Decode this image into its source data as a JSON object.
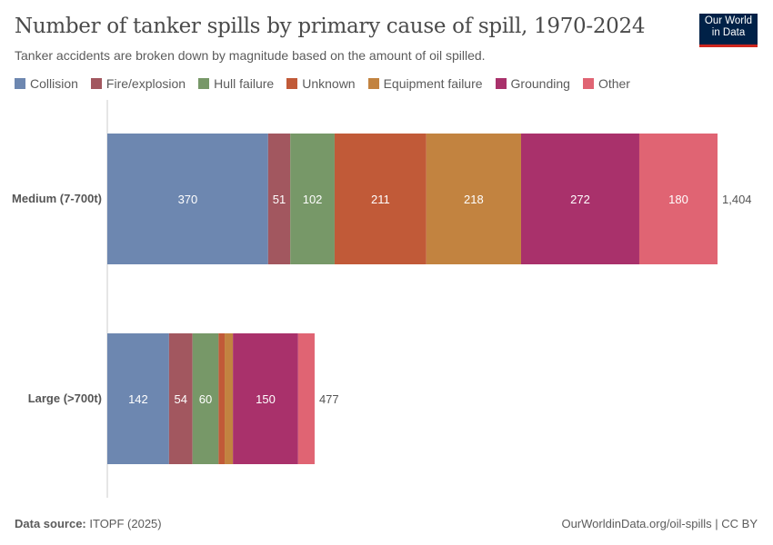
{
  "header": {
    "title": "Number of tanker spills by primary cause of spill, 1970-2024",
    "subtitle": "Tanker accidents are broken down by magnitude based on the amount of oil spilled.",
    "logo": "Our World in Data"
  },
  "footer": {
    "source_label": "Data source:",
    "source": "ITOPF (2025)",
    "url": "OurWorldinData.org/oil-spills | CC BY"
  },
  "chart_data": {
    "type": "bar",
    "orientation": "horizontal",
    "stacked": true,
    "title": "Number of tanker spills by primary cause of spill, 1970-2024",
    "categories": [
      "Medium (7-700t)",
      "Large (>700t)"
    ],
    "totals": [
      "1,404",
      "477"
    ],
    "legend_position": "top",
    "series": [
      {
        "name": "Collision",
        "color": "#6d87b0",
        "values": [
          370,
          142
        ]
      },
      {
        "name": "Fire/explosion",
        "color": "#a2575f",
        "values": [
          51,
          54
        ]
      },
      {
        "name": "Hull failure",
        "color": "#779868",
        "values": [
          102,
          60
        ]
      },
      {
        "name": "Unknown",
        "color": "#c15a38",
        "values": [
          211,
          14
        ]
      },
      {
        "name": "Equipment failure",
        "color": "#c28340",
        "values": [
          218,
          19
        ]
      },
      {
        "name": "Grounding",
        "color": "#a9316b",
        "values": [
          272,
          150
        ]
      },
      {
        "name": "Other",
        "color": "#e06473",
        "values": [
          180,
          38
        ]
      }
    ]
  }
}
